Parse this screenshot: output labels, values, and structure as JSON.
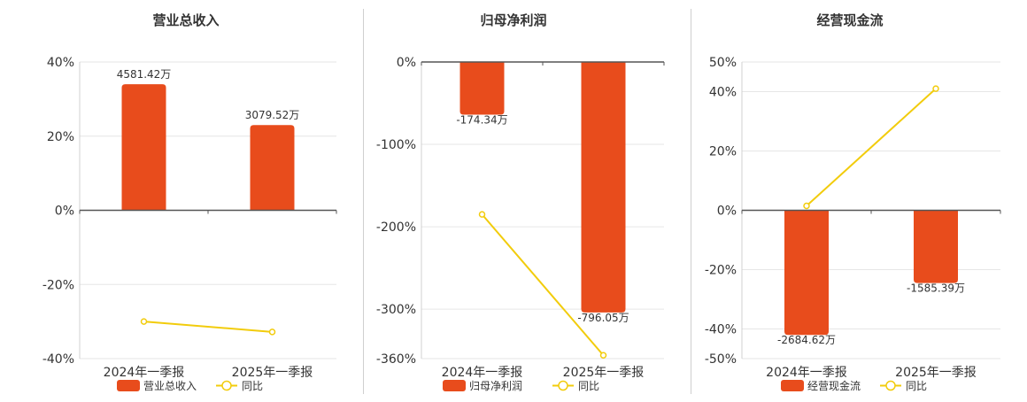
{
  "colors": {
    "bar": "#e84c1c",
    "line": "#f2cc0c",
    "grid": "#e6e6e6",
    "axis": "#555555"
  },
  "legend": {
    "bar_icon": "bar-swatch",
    "line_icon": "line-circle-marker"
  },
  "chart_data": [
    {
      "type": "bar",
      "title": "营业总收入",
      "categories": [
        "2024年一季报",
        "2025年一季报"
      ],
      "yticks": [
        "40%",
        "20%",
        "0%",
        "-20%",
        "-40%"
      ],
      "ylim": [
        -40,
        40
      ],
      "series": [
        {
          "name": "营业总收入",
          "type": "bar",
          "values": [
            34,
            23
          ],
          "labels": [
            "4581.42万",
            "3079.52万"
          ]
        },
        {
          "name": "同比",
          "type": "line",
          "values": [
            -30,
            -32.8
          ]
        }
      ]
    },
    {
      "type": "bar",
      "title": "归母净利润",
      "categories": [
        "2024年一季报",
        "2025年一季报"
      ],
      "yticks": [
        "0%",
        "-100%",
        "-200%",
        "-300%",
        "-360%"
      ],
      "ylim": [
        -360,
        0
      ],
      "series": [
        {
          "name": "归母净利润",
          "type": "bar",
          "values": [
            -64,
            -304
          ],
          "labels": [
            "-174.34万",
            "-796.05万"
          ]
        },
        {
          "name": "同比",
          "type": "line",
          "values": [
            -185,
            -356
          ]
        }
      ]
    },
    {
      "type": "bar",
      "title": "经营现金流",
      "categories": [
        "2024年一季报",
        "2025年一季报"
      ],
      "yticks": [
        "50%",
        "40%",
        "20%",
        "0%",
        "-20%",
        "-40%",
        "-50%"
      ],
      "ylim": [
        -50,
        50
      ],
      "series": [
        {
          "name": "经营现金流",
          "type": "bar",
          "values": [
            -42,
            -24.5
          ],
          "labels": [
            "-2684.62万",
            "-1585.39万"
          ]
        },
        {
          "name": "同比",
          "type": "line",
          "values": [
            1.5,
            41
          ]
        }
      ]
    }
  ]
}
